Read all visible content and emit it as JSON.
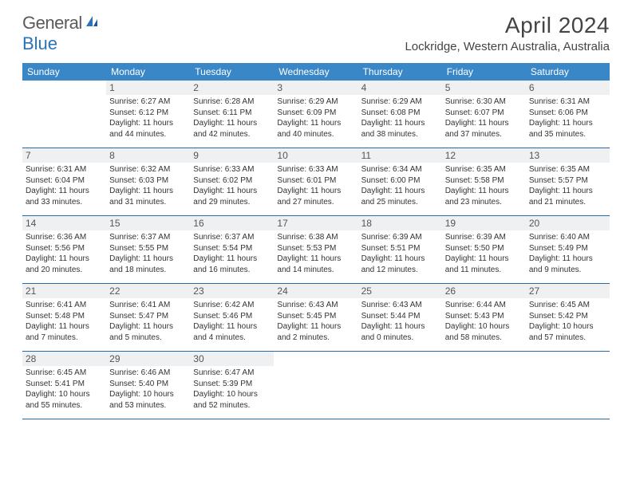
{
  "logo": {
    "text1": "General",
    "text2": "Blue"
  },
  "title": "April 2024",
  "location": "Lockridge, Western Australia, Australia",
  "colors": {
    "header_bg": "#3a87c8",
    "header_text": "#ffffff",
    "daynum_bg": "#eef0f2",
    "border": "#2a6aa5",
    "logo_grey": "#5a5a5a",
    "logo_blue": "#2a73b8"
  },
  "dayNames": [
    "Sunday",
    "Monday",
    "Tuesday",
    "Wednesday",
    "Thursday",
    "Friday",
    "Saturday"
  ],
  "weeks": [
    [
      {
        "day": "",
        "sunrise": "",
        "sunset": "",
        "daylight": ""
      },
      {
        "day": "1",
        "sunrise": "Sunrise: 6:27 AM",
        "sunset": "Sunset: 6:12 PM",
        "daylight": "Daylight: 11 hours and 44 minutes."
      },
      {
        "day": "2",
        "sunrise": "Sunrise: 6:28 AM",
        "sunset": "Sunset: 6:11 PM",
        "daylight": "Daylight: 11 hours and 42 minutes."
      },
      {
        "day": "3",
        "sunrise": "Sunrise: 6:29 AM",
        "sunset": "Sunset: 6:09 PM",
        "daylight": "Daylight: 11 hours and 40 minutes."
      },
      {
        "day": "4",
        "sunrise": "Sunrise: 6:29 AM",
        "sunset": "Sunset: 6:08 PM",
        "daylight": "Daylight: 11 hours and 38 minutes."
      },
      {
        "day": "5",
        "sunrise": "Sunrise: 6:30 AM",
        "sunset": "Sunset: 6:07 PM",
        "daylight": "Daylight: 11 hours and 37 minutes."
      },
      {
        "day": "6",
        "sunrise": "Sunrise: 6:31 AM",
        "sunset": "Sunset: 6:06 PM",
        "daylight": "Daylight: 11 hours and 35 minutes."
      }
    ],
    [
      {
        "day": "7",
        "sunrise": "Sunrise: 6:31 AM",
        "sunset": "Sunset: 6:04 PM",
        "daylight": "Daylight: 11 hours and 33 minutes."
      },
      {
        "day": "8",
        "sunrise": "Sunrise: 6:32 AM",
        "sunset": "Sunset: 6:03 PM",
        "daylight": "Daylight: 11 hours and 31 minutes."
      },
      {
        "day": "9",
        "sunrise": "Sunrise: 6:33 AM",
        "sunset": "Sunset: 6:02 PM",
        "daylight": "Daylight: 11 hours and 29 minutes."
      },
      {
        "day": "10",
        "sunrise": "Sunrise: 6:33 AM",
        "sunset": "Sunset: 6:01 PM",
        "daylight": "Daylight: 11 hours and 27 minutes."
      },
      {
        "day": "11",
        "sunrise": "Sunrise: 6:34 AM",
        "sunset": "Sunset: 6:00 PM",
        "daylight": "Daylight: 11 hours and 25 minutes."
      },
      {
        "day": "12",
        "sunrise": "Sunrise: 6:35 AM",
        "sunset": "Sunset: 5:58 PM",
        "daylight": "Daylight: 11 hours and 23 minutes."
      },
      {
        "day": "13",
        "sunrise": "Sunrise: 6:35 AM",
        "sunset": "Sunset: 5:57 PM",
        "daylight": "Daylight: 11 hours and 21 minutes."
      }
    ],
    [
      {
        "day": "14",
        "sunrise": "Sunrise: 6:36 AM",
        "sunset": "Sunset: 5:56 PM",
        "daylight": "Daylight: 11 hours and 20 minutes."
      },
      {
        "day": "15",
        "sunrise": "Sunrise: 6:37 AM",
        "sunset": "Sunset: 5:55 PM",
        "daylight": "Daylight: 11 hours and 18 minutes."
      },
      {
        "day": "16",
        "sunrise": "Sunrise: 6:37 AM",
        "sunset": "Sunset: 5:54 PM",
        "daylight": "Daylight: 11 hours and 16 minutes."
      },
      {
        "day": "17",
        "sunrise": "Sunrise: 6:38 AM",
        "sunset": "Sunset: 5:53 PM",
        "daylight": "Daylight: 11 hours and 14 minutes."
      },
      {
        "day": "18",
        "sunrise": "Sunrise: 6:39 AM",
        "sunset": "Sunset: 5:51 PM",
        "daylight": "Daylight: 11 hours and 12 minutes."
      },
      {
        "day": "19",
        "sunrise": "Sunrise: 6:39 AM",
        "sunset": "Sunset: 5:50 PM",
        "daylight": "Daylight: 11 hours and 11 minutes."
      },
      {
        "day": "20",
        "sunrise": "Sunrise: 6:40 AM",
        "sunset": "Sunset: 5:49 PM",
        "daylight": "Daylight: 11 hours and 9 minutes."
      }
    ],
    [
      {
        "day": "21",
        "sunrise": "Sunrise: 6:41 AM",
        "sunset": "Sunset: 5:48 PM",
        "daylight": "Daylight: 11 hours and 7 minutes."
      },
      {
        "day": "22",
        "sunrise": "Sunrise: 6:41 AM",
        "sunset": "Sunset: 5:47 PM",
        "daylight": "Daylight: 11 hours and 5 minutes."
      },
      {
        "day": "23",
        "sunrise": "Sunrise: 6:42 AM",
        "sunset": "Sunset: 5:46 PM",
        "daylight": "Daylight: 11 hours and 4 minutes."
      },
      {
        "day": "24",
        "sunrise": "Sunrise: 6:43 AM",
        "sunset": "Sunset: 5:45 PM",
        "daylight": "Daylight: 11 hours and 2 minutes."
      },
      {
        "day": "25",
        "sunrise": "Sunrise: 6:43 AM",
        "sunset": "Sunset: 5:44 PM",
        "daylight": "Daylight: 11 hours and 0 minutes."
      },
      {
        "day": "26",
        "sunrise": "Sunrise: 6:44 AM",
        "sunset": "Sunset: 5:43 PM",
        "daylight": "Daylight: 10 hours and 58 minutes."
      },
      {
        "day": "27",
        "sunrise": "Sunrise: 6:45 AM",
        "sunset": "Sunset: 5:42 PM",
        "daylight": "Daylight: 10 hours and 57 minutes."
      }
    ],
    [
      {
        "day": "28",
        "sunrise": "Sunrise: 6:45 AM",
        "sunset": "Sunset: 5:41 PM",
        "daylight": "Daylight: 10 hours and 55 minutes."
      },
      {
        "day": "29",
        "sunrise": "Sunrise: 6:46 AM",
        "sunset": "Sunset: 5:40 PM",
        "daylight": "Daylight: 10 hours and 53 minutes."
      },
      {
        "day": "30",
        "sunrise": "Sunrise: 6:47 AM",
        "sunset": "Sunset: 5:39 PM",
        "daylight": "Daylight: 10 hours and 52 minutes."
      },
      {
        "day": "",
        "sunrise": "",
        "sunset": "",
        "daylight": ""
      },
      {
        "day": "",
        "sunrise": "",
        "sunset": "",
        "daylight": ""
      },
      {
        "day": "",
        "sunrise": "",
        "sunset": "",
        "daylight": ""
      },
      {
        "day": "",
        "sunrise": "",
        "sunset": "",
        "daylight": ""
      }
    ]
  ]
}
